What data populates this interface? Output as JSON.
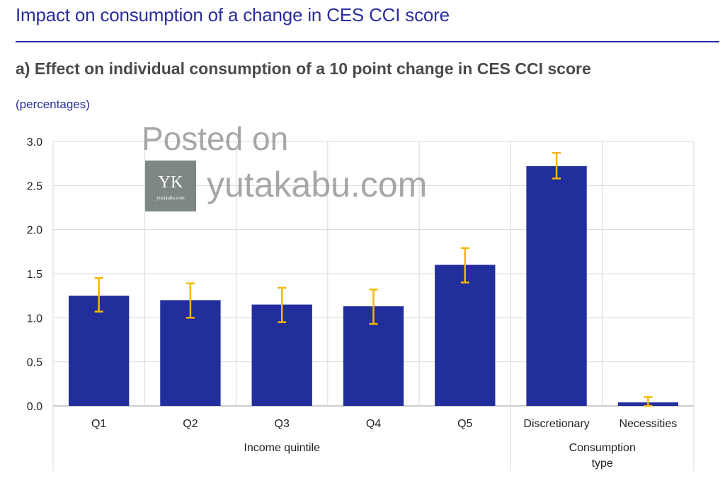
{
  "header": {
    "title": "Impact on consumption of a change in CES CCI score",
    "subtitle": "a) Effect on individual consumption of a 10 point change in CES CCI score",
    "units": "(percentages)"
  },
  "watermark": {
    "line1": "Posted on",
    "line2": "yutakabu.com",
    "logo_mark": "YK",
    "logo_caption": "yutakabu.com"
  },
  "colors": {
    "bar": "#212e9c",
    "error_bar": "#f5b800",
    "title": "#2a2e9c",
    "grid": "#d9d9d9"
  },
  "chart_data": {
    "type": "bar",
    "categories": [
      "Q1",
      "Q2",
      "Q3",
      "Q4",
      "Q5",
      "Discretionary",
      "Necessities"
    ],
    "groups": [
      {
        "label": "Income quintile",
        "categories": [
          "Q1",
          "Q2",
          "Q3",
          "Q4",
          "Q5"
        ]
      },
      {
        "label": "Consumption type",
        "categories": [
          "Discretionary",
          "Necessities"
        ]
      }
    ],
    "values": [
      1.25,
      1.2,
      1.15,
      1.13,
      1.6,
      2.72,
      0.04
    ],
    "error_low": [
      1.07,
      1.0,
      0.95,
      0.93,
      1.4,
      2.58,
      0.0
    ],
    "error_high": [
      1.45,
      1.39,
      1.34,
      1.32,
      1.79,
      2.87,
      0.1
    ],
    "ylim": [
      0,
      3
    ],
    "yticks": [
      "0.0",
      "0.5",
      "1.0",
      "1.5",
      "2.0",
      "2.5",
      "3.0"
    ],
    "grid": true
  }
}
